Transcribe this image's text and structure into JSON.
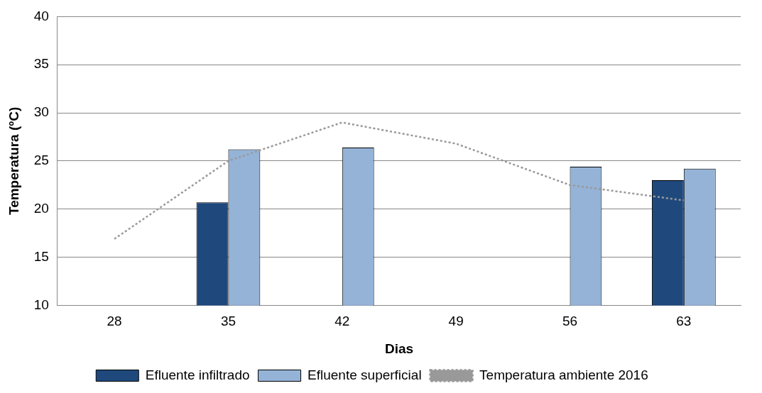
{
  "chart_data": {
    "type": "bar",
    "xlabel": "Dias",
    "ylabel": "Temperatura (ºC)",
    "categories": [
      "28",
      "35",
      "42",
      "49",
      "56",
      "63"
    ],
    "series": [
      {
        "name": "Efluente infiltrado",
        "color": "#1f497d",
        "values": [
          null,
          20.7,
          null,
          null,
          null,
          23.0
        ]
      },
      {
        "name": "Efluente superficial",
        "color": "#95b3d7",
        "values": [
          null,
          26.2,
          26.4,
          null,
          24.4,
          24.2
        ]
      },
      {
        "name": "Temperatura ambiente 2016",
        "type": "line",
        "color": "#999999",
        "line_style": "dotted",
        "marker": "none",
        "values": [
          16.9,
          25.0,
          29.0,
          26.8,
          22.5,
          20.9
        ]
      }
    ],
    "ylim": [
      10,
      40
    ],
    "yticks": [
      10,
      15,
      20,
      25,
      30,
      35,
      40
    ],
    "grid": "y",
    "legend": "bottom"
  }
}
